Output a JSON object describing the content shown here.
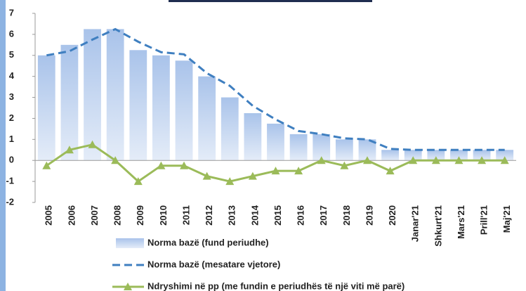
{
  "chart_data": {
    "type": "combo",
    "categories": [
      "2005",
      "2006",
      "2007",
      "2008",
      "2009",
      "2010",
      "2011",
      "2012",
      "2013",
      "2014",
      "2015",
      "2016",
      "2017",
      "2018",
      "2019",
      "2020",
      "Janar'21",
      "Shkurt'21",
      "Mars'21",
      "Prill'21",
      "Maj'21"
    ],
    "series": [
      {
        "name": "Norma bazë (fund periudhe)",
        "type": "bar",
        "color": "#a9c3ea",
        "values": [
          5,
          5.5,
          6.25,
          6.25,
          5.25,
          5,
          4.75,
          4,
          3,
          2.25,
          1.75,
          1.25,
          1.25,
          1,
          1,
          0.5,
          0.5,
          0.5,
          0.5,
          0.5,
          0.5
        ]
      },
      {
        "name": "Norma bazë (mesatare vjetore)",
        "type": "line",
        "dashed": true,
        "color": "#3f7fc0",
        "values": [
          5.0,
          5.2,
          5.75,
          6.25,
          5.65,
          5.15,
          5.05,
          4.15,
          3.55,
          2.6,
          1.95,
          1.4,
          1.25,
          1.05,
          1.0,
          0.55,
          0.5,
          0.5,
          0.5,
          0.5,
          0.5
        ]
      },
      {
        "name": "Ndryshimi në pp (me fundin e periudhës të një viti më parë)",
        "type": "line",
        "marker": "triangle",
        "color": "#9bbb59",
        "values": [
          -0.25,
          0.5,
          0.75,
          0,
          -1,
          -0.25,
          -0.25,
          -0.75,
          -1,
          -0.75,
          -0.5,
          -0.5,
          0,
          -0.25,
          0,
          -0.5,
          0,
          0,
          0,
          0,
          0
        ]
      }
    ],
    "ylim": [
      -2,
      7
    ],
    "yticks": [
      -2,
      -1,
      0,
      1,
      2,
      3,
      4,
      5,
      6,
      7
    ]
  }
}
